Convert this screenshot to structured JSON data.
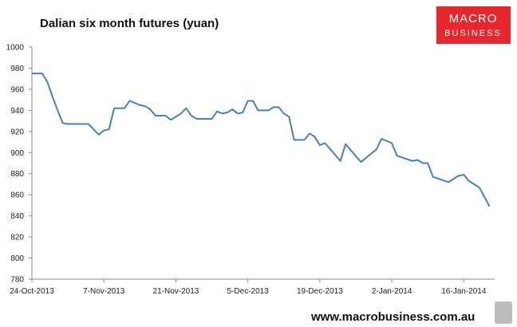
{
  "chart_data": {
    "type": "line",
    "title": "Dalian six month futures (yuan)",
    "x": [
      "24-Oct-2013",
      "26-Oct-2013",
      "27-Oct-2013",
      "28-Oct-2013",
      "29-Oct-2013",
      "30-Oct-2013",
      "31-Oct-2013",
      "4-Nov-2013",
      "6-Nov-2013",
      "7-Nov-2013",
      "8-Nov-2013",
      "9-Nov-2013",
      "11-Nov-2013",
      "12-Nov-2013",
      "14-Nov-2013",
      "15-Nov-2013",
      "16-Nov-2013",
      "17-Nov-2013",
      "19-Nov-2013",
      "20-Nov-2013",
      "22-Nov-2013",
      "23-Nov-2013",
      "24-Nov-2013",
      "25-Nov-2013",
      "28-Nov-2013",
      "29-Nov-2013",
      "30-Nov-2013",
      "1-Dec-2013",
      "2-Dec-2013",
      "3-Dec-2013",
      "4-Dec-2013",
      "5-Dec-2013",
      "6-Dec-2013",
      "7-Dec-2013",
      "9-Dec-2013",
      "10-Dec-2013",
      "11-Dec-2013",
      "12-Dec-2013",
      "13-Dec-2013",
      "14-Dec-2013",
      "16-Dec-2013",
      "17-Dec-2013",
      "18-Dec-2013",
      "19-Dec-2013",
      "20-Dec-2013",
      "23-Dec-2013",
      "24-Dec-2013",
      "27-Dec-2013",
      "30-Dec-2013",
      "31-Dec-2013",
      "2-Jan-2014",
      "3-Jan-2014",
      "6-Jan-2014",
      "7-Jan-2014",
      "8-Jan-2014",
      "9-Jan-2014",
      "10-Jan-2014",
      "13-Jan-2014",
      "14-Jan-2014",
      "15-Jan-2014",
      "16-Jan-2014",
      "17-Jan-2014",
      "19-Jan-2014",
      "21-Jan-2014"
    ],
    "series": [
      {
        "color": "#4a7ebb",
        "values": [
          975,
          975,
          967,
          953,
          940,
          928,
          927,
          927,
          917,
          921,
          922,
          942,
          942,
          949,
          945,
          944,
          941,
          935,
          935,
          931,
          937,
          942,
          935,
          932,
          932,
          939,
          937,
          938,
          941,
          937,
          938,
          949,
          949,
          940,
          940,
          943,
          943,
          937,
          934,
          912,
          912,
          918,
          915,
          907,
          909,
          892,
          908,
          891,
          903,
          913,
          909,
          897,
          892,
          893,
          890,
          890,
          877,
          872,
          875,
          878,
          879,
          873,
          867,
          849
        ]
      }
    ],
    "xlim": [
      "24-Oct-2013",
      "22-Jan-2014"
    ],
    "xticks": [
      "24-Oct-2013",
      "7-Nov-2013",
      "21-Nov-2013",
      "5-Dec-2013",
      "19-Dec-2013",
      "2-Jan-2014",
      "16-Jan-2014"
    ],
    "ylim": [
      780,
      1000
    ],
    "yticks": [
      780,
      800,
      820,
      840,
      860,
      880,
      900,
      920,
      940,
      960,
      980,
      1000
    ],
    "grid": false
  },
  "logo": {
    "line1": "MACRO",
    "line2": "BUSINESS"
  },
  "footer": "www.macrobusiness.com.au"
}
